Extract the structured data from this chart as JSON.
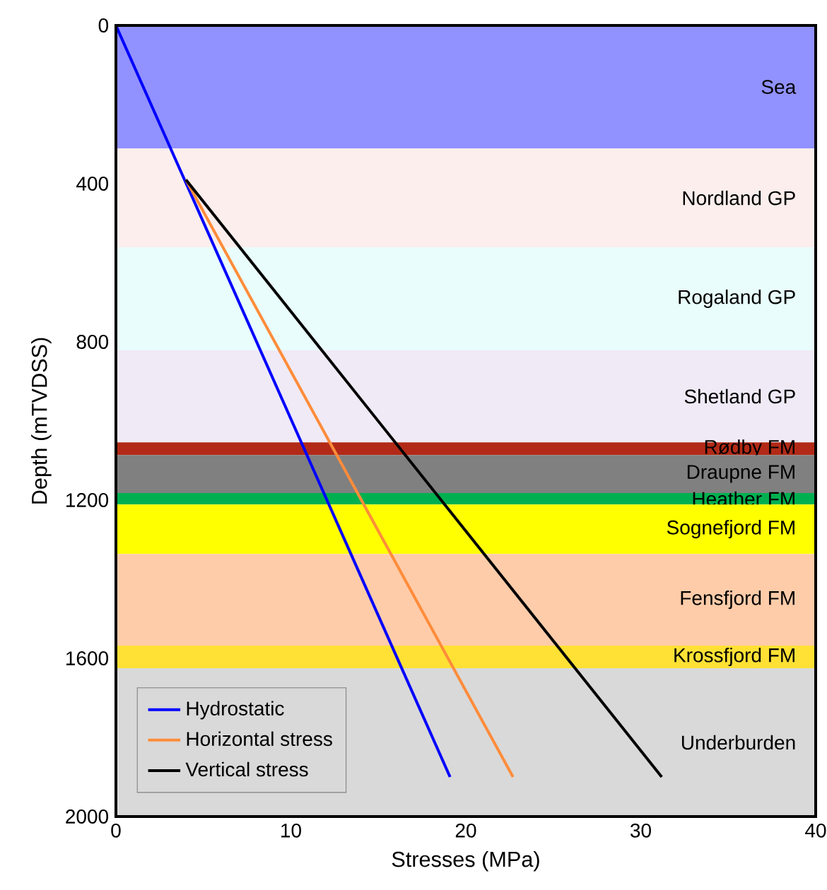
{
  "chart_data": {
    "type": "line",
    "xlabel": "Stresses (MPa)",
    "ylabel": "Depth (mTVDSS)",
    "xlim": [
      0,
      40
    ],
    "xticks": [
      0,
      10,
      20,
      30,
      40
    ],
    "ylim": [
      2000,
      0
    ],
    "yticks": [
      0,
      400,
      800,
      1200,
      1600,
      2000
    ],
    "legend": "bottom left",
    "grid": false,
    "marker": "none",
    "line_style": "solid",
    "series": [
      {
        "name": "Hydrostatic",
        "color": "#0000ff",
        "x": [
          0,
          19.1
        ],
        "values": [
          0,
          1900
        ]
      },
      {
        "name": "Horizontal stress",
        "color": "#ff8c3a",
        "x": [
          4.0,
          22.7
        ],
        "values": [
          390,
          1900
        ]
      },
      {
        "name": "Vertical stress",
        "color": "#000000",
        "x": [
          4.0,
          31.2
        ],
        "values": [
          390,
          1900
        ]
      }
    ],
    "bands": [
      {
        "axis": "y",
        "from": 0,
        "to": 311,
        "label": "Sea",
        "color": "#9191ff"
      },
      {
        "axis": "y",
        "from": 311,
        "to": 561,
        "label": "Nordland GP",
        "color": "#fbeeec"
      },
      {
        "axis": "y",
        "from": 561,
        "to": 821,
        "label": "Rogaland GP",
        "color": "#e8fdfc"
      },
      {
        "axis": "y",
        "from": 821,
        "to": 1054,
        "label": "Shetland GP",
        "color": "#efeaf6"
      },
      {
        "axis": "y",
        "from": 1054,
        "to": 1086,
        "label": "Rødby FM",
        "color": "#b22a17"
      },
      {
        "axis": "y",
        "from": 1086,
        "to": 1182,
        "label": "Draupne FM",
        "color": "#808080"
      },
      {
        "axis": "y",
        "from": 1182,
        "to": 1211,
        "label": "Heather FM",
        "color": "#00b050"
      },
      {
        "axis": "y",
        "from": 1211,
        "to": 1336,
        "label": "Sognefjord FM",
        "color": "#ffff00"
      },
      {
        "axis": "y",
        "from": 1336,
        "to": 1568,
        "label": "Fensfjord FM",
        "color": "#ffcca9"
      },
      {
        "axis": "y",
        "from": 1568,
        "to": 1625,
        "label": "Krossfjord FM",
        "color": "#ffe135"
      },
      {
        "axis": "y",
        "from": 1625,
        "to": 2000,
        "label": "Underburden",
        "color": "#d9d9d9"
      }
    ]
  }
}
